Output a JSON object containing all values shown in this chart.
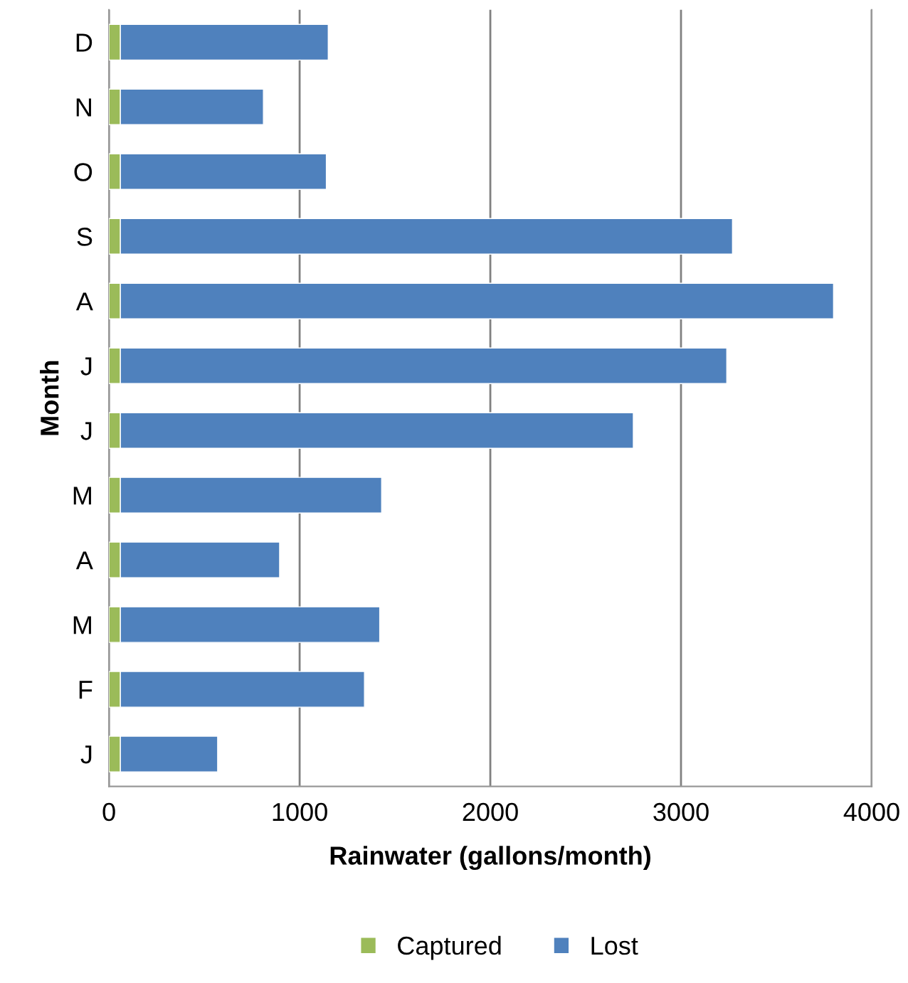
{
  "chart_data": {
    "type": "bar",
    "orientation": "horizontal",
    "stacked": true,
    "xlabel": "Rainwater (gallons/month)",
    "ylabel": "Month",
    "categories": [
      "D",
      "N",
      "O",
      "S",
      "A",
      "J",
      "J",
      "M",
      "A",
      "M",
      "F",
      "J"
    ],
    "series": [
      {
        "name": "Captured",
        "color": "#9bbb59",
        "values": [
          60,
          60,
          60,
          60,
          60,
          60,
          60,
          60,
          60,
          60,
          60,
          60
        ]
      },
      {
        "name": "Lost",
        "color": "#4f81bd",
        "values": [
          1090,
          750,
          1080,
          3210,
          3740,
          3180,
          2690,
          1370,
          835,
          1360,
          1280,
          510
        ]
      }
    ],
    "xlim": [
      0,
      4000
    ],
    "xticks": [
      0,
      1000,
      2000,
      3000,
      4000
    ],
    "grid": "x",
    "legend": "bottom"
  }
}
